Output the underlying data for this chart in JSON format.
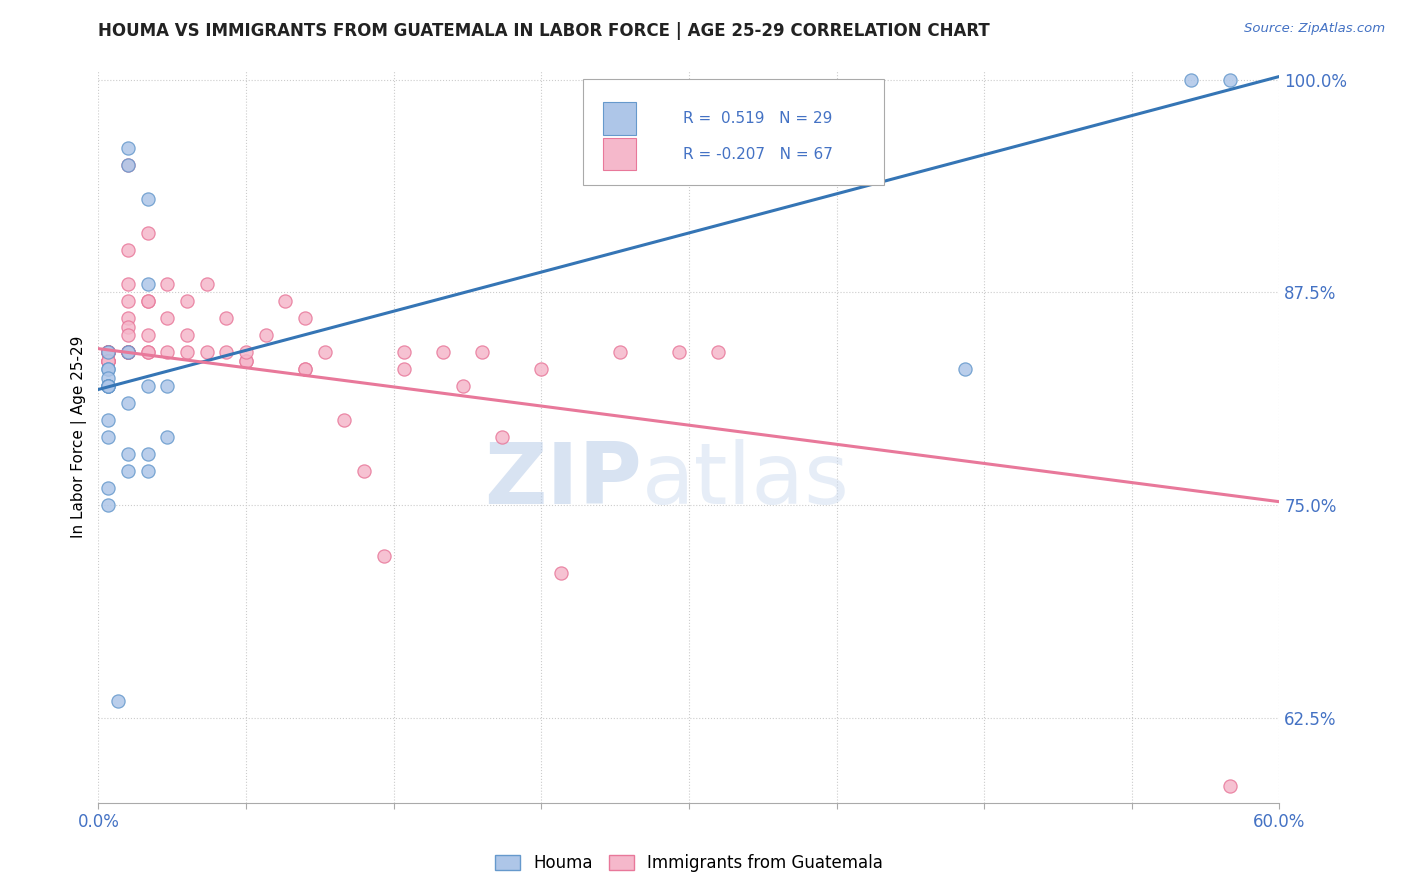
{
  "title": "HOUMA VS IMMIGRANTS FROM GUATEMALA IN LABOR FORCE | AGE 25-29 CORRELATION CHART",
  "source_text": "Source: ZipAtlas.com",
  "ylabel": "In Labor Force | Age 25-29",
  "watermark_zip": "ZIP",
  "watermark_atlas": "atlas",
  "legend1_R": "0.519",
  "legend1_N": "29",
  "legend2_R": "-0.207",
  "legend2_N": "67",
  "xmin": 0.0,
  "xmax": 0.6,
  "ymin": 0.575,
  "ymax": 1.005,
  "yticks": [
    0.625,
    0.75,
    0.875,
    1.0
  ],
  "ytick_labels": [
    "62.5%",
    "75.0%",
    "87.5%",
    "100.0%"
  ],
  "xticks": [
    0.0,
    0.075,
    0.15,
    0.225,
    0.3,
    0.375,
    0.45,
    0.525,
    0.6
  ],
  "xtick_labels": [
    "0.0%",
    "",
    "",
    "",
    "",
    "",
    "",
    "",
    "60.0%"
  ],
  "houma_color": "#aec6e8",
  "guatemala_color": "#f5b8cb",
  "houma_edge": "#6699cc",
  "guatemala_edge": "#e8789a",
  "line_houma_color": "#3575b5",
  "line_guatemala_color": "#e8789a",
  "houma_line_x0": 0.0,
  "houma_line_y0": 0.818,
  "houma_line_x1": 0.6,
  "houma_line_y1": 1.002,
  "gt_line_x0": 0.0,
  "gt_line_y0": 0.842,
  "gt_line_x1": 0.6,
  "gt_line_y1": 0.752,
  "houma_scatter_x": [
    0.005,
    0.005,
    0.005,
    0.005,
    0.005,
    0.005,
    0.005,
    0.005,
    0.005,
    0.005,
    0.005,
    0.005,
    0.015,
    0.015,
    0.015,
    0.015,
    0.015,
    0.015,
    0.025,
    0.025,
    0.025,
    0.025,
    0.025,
    0.035,
    0.035,
    0.01,
    0.44,
    0.555,
    0.575
  ],
  "houma_scatter_y": [
    0.84,
    0.83,
    0.83,
    0.825,
    0.82,
    0.82,
    0.82,
    0.82,
    0.8,
    0.79,
    0.76,
    0.75,
    0.96,
    0.95,
    0.84,
    0.81,
    0.78,
    0.77,
    0.93,
    0.88,
    0.82,
    0.78,
    0.77,
    0.82,
    0.79,
    0.635,
    0.83,
    1.0,
    1.0
  ],
  "guatemala_scatter_x": [
    0.005,
    0.005,
    0.005,
    0.005,
    0.005,
    0.005,
    0.005,
    0.005,
    0.005,
    0.005,
    0.005,
    0.005,
    0.005,
    0.005,
    0.015,
    0.015,
    0.015,
    0.015,
    0.015,
    0.015,
    0.015,
    0.015,
    0.015,
    0.015,
    0.015,
    0.015,
    0.015,
    0.025,
    0.025,
    0.025,
    0.025,
    0.025,
    0.025,
    0.035,
    0.035,
    0.035,
    0.045,
    0.045,
    0.045,
    0.055,
    0.055,
    0.065,
    0.065,
    0.075,
    0.075,
    0.075,
    0.085,
    0.095,
    0.105,
    0.105,
    0.105,
    0.115,
    0.125,
    0.135,
    0.145,
    0.155,
    0.155,
    0.175,
    0.185,
    0.195,
    0.205,
    0.225,
    0.235,
    0.265,
    0.295,
    0.315,
    0.575
  ],
  "guatemala_scatter_y": [
    0.84,
    0.84,
    0.84,
    0.84,
    0.84,
    0.84,
    0.84,
    0.84,
    0.84,
    0.835,
    0.835,
    0.835,
    0.835,
    0.835,
    0.95,
    0.9,
    0.88,
    0.87,
    0.86,
    0.855,
    0.85,
    0.84,
    0.84,
    0.84,
    0.84,
    0.84,
    0.84,
    0.91,
    0.87,
    0.87,
    0.85,
    0.84,
    0.84,
    0.88,
    0.86,
    0.84,
    0.87,
    0.85,
    0.84,
    0.88,
    0.84,
    0.86,
    0.84,
    0.835,
    0.835,
    0.84,
    0.85,
    0.87,
    0.86,
    0.83,
    0.83,
    0.84,
    0.8,
    0.77,
    0.72,
    0.84,
    0.83,
    0.84,
    0.82,
    0.84,
    0.79,
    0.83,
    0.71,
    0.84,
    0.84,
    0.84,
    0.585
  ]
}
